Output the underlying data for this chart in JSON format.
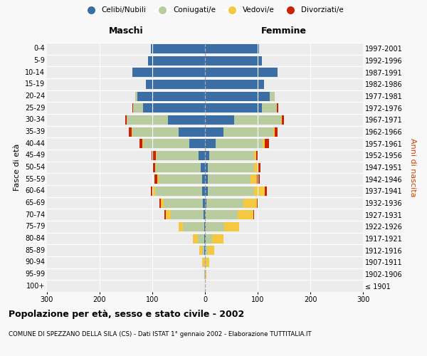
{
  "age_groups": [
    "100+",
    "95-99",
    "90-94",
    "85-89",
    "80-84",
    "75-79",
    "70-74",
    "65-69",
    "60-64",
    "55-59",
    "50-54",
    "45-49",
    "40-44",
    "35-39",
    "30-34",
    "25-29",
    "20-24",
    "15-19",
    "10-14",
    "5-9",
    "0-4"
  ],
  "birth_years": [
    "≤ 1901",
    "1902-1906",
    "1907-1911",
    "1912-1916",
    "1917-1921",
    "1922-1926",
    "1927-1931",
    "1932-1936",
    "1937-1941",
    "1942-1946",
    "1947-1951",
    "1952-1956",
    "1957-1961",
    "1962-1966",
    "1967-1971",
    "1972-1976",
    "1977-1981",
    "1982-1986",
    "1987-1991",
    "1992-1996",
    "1997-2001"
  ],
  "male_celibi": [
    0,
    0,
    0,
    1,
    1,
    2,
    3,
    4,
    5,
    6,
    8,
    12,
    30,
    50,
    70,
    118,
    128,
    112,
    138,
    108,
    103
  ],
  "male_coniugati": [
    0,
    1,
    2,
    5,
    12,
    40,
    62,
    75,
    90,
    82,
    85,
    80,
    88,
    88,
    78,
    18,
    4,
    0,
    0,
    0,
    0
  ],
  "male_vedovi": [
    0,
    1,
    3,
    5,
    10,
    8,
    10,
    5,
    4,
    3,
    2,
    1,
    1,
    1,
    1,
    0,
    0,
    0,
    0,
    0,
    0
  ],
  "male_divorziati": [
    0,
    0,
    0,
    0,
    0,
    0,
    2,
    2,
    4,
    5,
    5,
    8,
    5,
    5,
    3,
    2,
    0,
    0,
    0,
    0,
    0
  ],
  "female_nubili": [
    0,
    0,
    0,
    1,
    1,
    2,
    2,
    3,
    5,
    5,
    5,
    8,
    20,
    35,
    55,
    108,
    123,
    112,
    138,
    108,
    103
  ],
  "female_coniugate": [
    0,
    1,
    2,
    5,
    12,
    35,
    60,
    70,
    88,
    82,
    88,
    85,
    90,
    95,
    90,
    28,
    10,
    0,
    0,
    0,
    0
  ],
  "female_vedove": [
    0,
    2,
    6,
    12,
    22,
    28,
    30,
    25,
    20,
    12,
    8,
    4,
    3,
    2,
    1,
    1,
    0,
    0,
    0,
    0,
    0
  ],
  "female_divorziate": [
    0,
    0,
    0,
    0,
    0,
    0,
    1,
    2,
    5,
    5,
    5,
    5,
    8,
    6,
    4,
    2,
    0,
    0,
    0,
    0,
    0
  ],
  "color_celibi": "#3a6ea5",
  "color_coniugati": "#b8cca0",
  "color_vedovi": "#f5c842",
  "color_divorziati": "#cc2200",
  "xlim": 300,
  "title": "Popolazione per età, sesso e stato civile - 2002",
  "subtitle": "COMUNE DI SPEZZANO DELLA SILA (CS) - Dati ISTAT 1° gennaio 2002 - Elaborazione TUTTITALIA.IT",
  "ylabel": "Fasce di età",
  "ylabel_right": "Anni di nascita",
  "label_maschi": "Maschi",
  "label_femmine": "Femmine",
  "legend_labels": [
    "Celibi/Nubili",
    "Coniugati/e",
    "Vedovi/e",
    "Divorziati/e"
  ],
  "bg_color": "#f8f8f8",
  "plot_bg": "#ececec"
}
